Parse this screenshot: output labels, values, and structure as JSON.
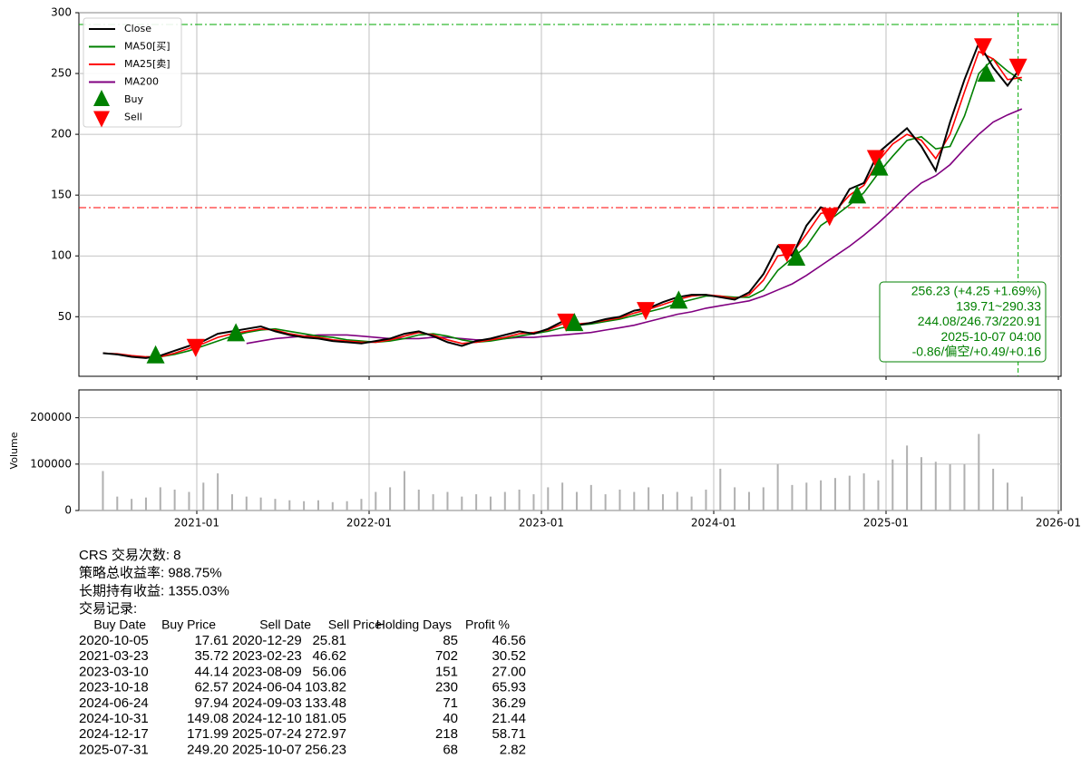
{
  "chart_data": [
    {
      "type": "line",
      "x": [
        "2020-06",
        "2020-07",
        "2020-08",
        "2020-09",
        "2020-10",
        "2020-11",
        "2020-12",
        "2021-01",
        "2021-02",
        "2021-03",
        "2021-04",
        "2021-05",
        "2021-06",
        "2021-07",
        "2021-08",
        "2021-09",
        "2021-10",
        "2021-11",
        "2021-12",
        "2022-01",
        "2022-02",
        "2022-03",
        "2022-04",
        "2022-05",
        "2022-06",
        "2022-07",
        "2022-08",
        "2022-09",
        "2022-10",
        "2022-11",
        "2022-12",
        "2023-01",
        "2023-02",
        "2023-03",
        "2023-04",
        "2023-05",
        "2023-06",
        "2023-07",
        "2023-08",
        "2023-09",
        "2023-10",
        "2023-11",
        "2023-12",
        "2024-01",
        "2024-02",
        "2024-03",
        "2024-04",
        "2024-05",
        "2024-06",
        "2024-07",
        "2024-08",
        "2024-09",
        "2024-10",
        "2024-11",
        "2024-12",
        "2025-01",
        "2025-02",
        "2025-03",
        "2025-04",
        "2025-05",
        "2025-06",
        "2025-07",
        "2025-08",
        "2025-09",
        "2025-10"
      ],
      "series": [
        {
          "name": "Close",
          "color": "#000000",
          "values": [
            20,
            19,
            17,
            16,
            18,
            22,
            26,
            30,
            36,
            38,
            40,
            42,
            38,
            35,
            33,
            32,
            30,
            29,
            28,
            30,
            32,
            36,
            38,
            34,
            29,
            26,
            30,
            32,
            35,
            38,
            36,
            40,
            46,
            43,
            45,
            48,
            50,
            55,
            57,
            62,
            66,
            68,
            68,
            66,
            64,
            70,
            85,
            108,
            100,
            125,
            140,
            135,
            155,
            160,
            185,
            195,
            205,
            190,
            170,
            210,
            245,
            275,
            255,
            240,
            256.23
          ]
        },
        {
          "name": "MA50[买]",
          "color": "#008000",
          "values": [
            null,
            null,
            null,
            17,
            17,
            19,
            22,
            26,
            30,
            34,
            37,
            39,
            40,
            38,
            36,
            34,
            33,
            31,
            30,
            29,
            30,
            32,
            35,
            36,
            34,
            31,
            29,
            30,
            32,
            34,
            36,
            38,
            41,
            43,
            44,
            46,
            48,
            51,
            54,
            57,
            61,
            64,
            67,
            67,
            66,
            66,
            72,
            88,
            98,
            108,
            125,
            133,
            142,
            152,
            168,
            182,
            195,
            198,
            188,
            190,
            215,
            250,
            262,
            252,
            244.08
          ]
        },
        {
          "name": "MA25[卖]",
          "color": "#ff0000",
          "values": [
            20,
            19.5,
            18,
            17,
            17,
            20,
            24,
            28,
            33,
            36,
            38,
            40,
            39,
            36,
            34,
            33,
            31,
            30,
            29,
            29,
            31,
            34,
            37,
            35,
            31,
            28,
            29,
            31,
            33,
            36,
            37,
            39,
            44,
            44,
            45,
            47,
            49,
            53,
            56,
            60,
            64,
            67,
            68,
            67,
            65,
            68,
            80,
            100,
            102,
            118,
            135,
            137,
            150,
            158,
            178,
            192,
            200,
            195,
            180,
            200,
            235,
            268,
            262,
            245,
            246.73
          ]
        },
        {
          "name": "MA200",
          "color": "#800080",
          "values": [
            null,
            null,
            null,
            null,
            null,
            null,
            null,
            null,
            null,
            null,
            28,
            30,
            32,
            33,
            34,
            35,
            35,
            35,
            34,
            33,
            32,
            32,
            32,
            33,
            33,
            32,
            31,
            31,
            32,
            33,
            33,
            34,
            35,
            36,
            37,
            39,
            41,
            43,
            46,
            49,
            52,
            54,
            57,
            59,
            61,
            63,
            67,
            72,
            77,
            84,
            92,
            100,
            108,
            117,
            127,
            138,
            150,
            160,
            166,
            175,
            188,
            200,
            210,
            216,
            220.91
          ]
        }
      ],
      "markers": [
        {
          "name": "Buy",
          "color": "#008000"
        },
        {
          "name": "Sell",
          "color": "#ff0000"
        }
      ],
      "hlines": [
        {
          "value": 139.71,
          "color": "#ff0000"
        },
        {
          "value": 290.33,
          "color": "#00aa00"
        }
      ],
      "vline": "2025-10-07",
      "info_box": [
        "256.23 (+4.25 +1.69%)",
        "139.71~290.33",
        "244.08/246.73/220.91",
        "2025-10-07 04:00",
        "-0.86/偏空/+0.49/+0.16"
      ],
      "ylim": [
        1,
        300
      ],
      "yticks": [
        50,
        100,
        150,
        200,
        250,
        300
      ],
      "grid": true,
      "legend": "upper left"
    },
    {
      "type": "bar",
      "ylabel": "Volume",
      "color": "#b0b0b0",
      "x": [
        "2020-06",
        "2020-07",
        "2020-08",
        "2020-09",
        "2020-10",
        "2020-11",
        "2020-12",
        "2021-01",
        "2021-02",
        "2021-03",
        "2021-04",
        "2021-05",
        "2021-06",
        "2021-07",
        "2021-08",
        "2021-09",
        "2021-10",
        "2021-11",
        "2021-12",
        "2022-01",
        "2022-02",
        "2022-03",
        "2022-04",
        "2022-05",
        "2022-06",
        "2022-07",
        "2022-08",
        "2022-09",
        "2022-10",
        "2022-11",
        "2022-12",
        "2023-01",
        "2023-02",
        "2023-03",
        "2023-04",
        "2023-05",
        "2023-06",
        "2023-07",
        "2023-08",
        "2023-09",
        "2023-10",
        "2023-11",
        "2023-12",
        "2024-01",
        "2024-02",
        "2024-03",
        "2024-04",
        "2024-05",
        "2024-06",
        "2024-07",
        "2024-08",
        "2024-09",
        "2024-10",
        "2024-11",
        "2024-12",
        "2025-01",
        "2025-02",
        "2025-03",
        "2025-04",
        "2025-05",
        "2025-06",
        "2025-07",
        "2025-08",
        "2025-09",
        "2025-10"
      ],
      "values": [
        85000,
        30000,
        25000,
        28000,
        50000,
        45000,
        40000,
        60000,
        80000,
        35000,
        30000,
        28000,
        25000,
        22000,
        20000,
        22000,
        18000,
        20000,
        25000,
        40000,
        50000,
        85000,
        45000,
        35000,
        40000,
        30000,
        35000,
        30000,
        40000,
        45000,
        35000,
        50000,
        60000,
        40000,
        55000,
        35000,
        45000,
        40000,
        50000,
        35000,
        40000,
        30000,
        45000,
        90000,
        50000,
        40000,
        50000,
        100000,
        55000,
        60000,
        65000,
        70000,
        75000,
        80000,
        65000,
        110000,
        140000,
        115000,
        105000,
        100000,
        100000,
        165000,
        90000,
        60000,
        30000
      ],
      "ylim": [
        0,
        260000
      ],
      "yticks": [
        0,
        100000,
        200000
      ],
      "xticks": [
        "2021-01",
        "2022-01",
        "2023-01",
        "2024-01",
        "2025-01",
        "2026-01"
      ],
      "grid": true
    }
  ],
  "summary": [
    "CRS 交易次数: 8",
    "策略总收益率: 988.75%",
    "长期持有收益: 1355.03%",
    "交易记录:"
  ],
  "trades": {
    "columns": [
      "Buy Date",
      "Buy Price",
      "Sell Date",
      "Sell Price",
      "Holding Days",
      "Profit %"
    ],
    "rows": [
      [
        "2020-10-05",
        "17.61",
        "2020-12-29",
        "25.81",
        "85",
        "46.56"
      ],
      [
        "2021-03-23",
        "35.72",
        "2023-02-23",
        "46.62",
        "702",
        "30.52"
      ],
      [
        "2023-03-10",
        "44.14",
        "2023-08-09",
        "56.06",
        "151",
        "27.00"
      ],
      [
        "2023-10-18",
        "62.57",
        "2024-06-04",
        "103.82",
        "230",
        "65.93"
      ],
      [
        "2024-06-24",
        "97.94",
        "2024-09-03",
        "133.48",
        "71",
        "36.29"
      ],
      [
        "2024-10-31",
        "149.08",
        "2024-12-10",
        "181.05",
        "40",
        "21.44"
      ],
      [
        "2024-12-17",
        "171.99",
        "2025-07-24",
        "272.97",
        "218",
        "58.71"
      ],
      [
        "2025-07-31",
        "249.20",
        "2025-10-07",
        "256.23",
        "68",
        "2.82"
      ]
    ]
  }
}
